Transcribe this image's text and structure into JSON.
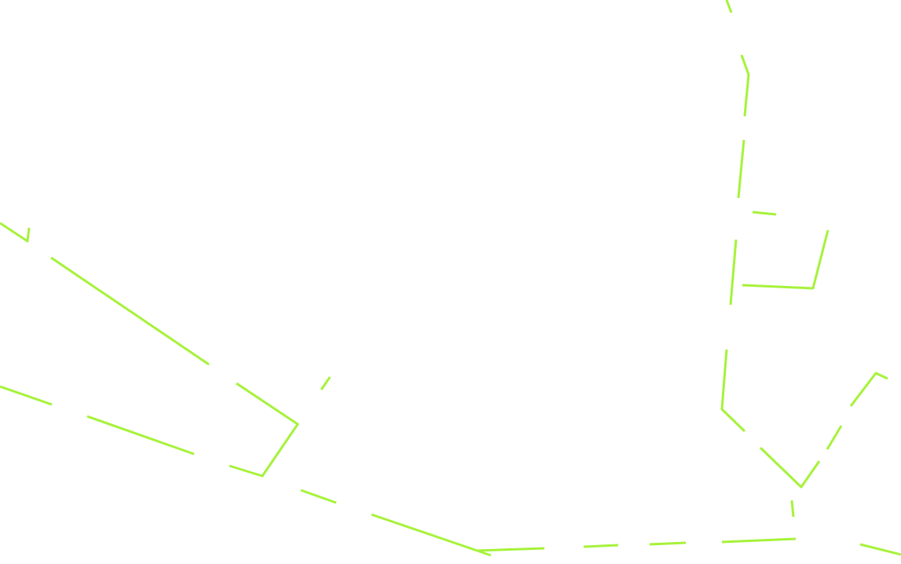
{
  "map": {
    "background": "#ffffff",
    "route_color": "#a6f23a",
    "feature_type": "route-lines"
  }
}
